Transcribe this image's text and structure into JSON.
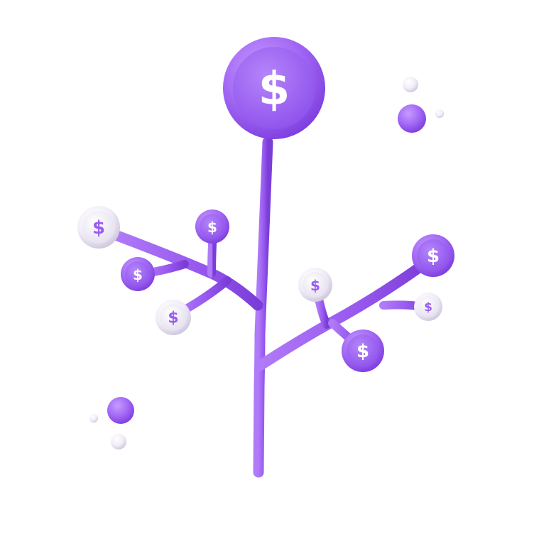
{
  "illustration": {
    "subject": "money-tree",
    "coin_symbol": "$",
    "colors": {
      "stem": "#9B5CF0",
      "stem_shadow": "#7A3FD6",
      "coin_purple": "#A46AF5",
      "coin_purple_dark": "#8446E6",
      "coin_white": "#F4F1FA",
      "coin_white_shade": "#D9D4E6",
      "symbol_on_purple": "#FFFFFF",
      "symbol_on_white": "#9B5CF0",
      "bubble_purple": "#9A57EE",
      "bubble_white": "#EEEAF4"
    },
    "icons": [
      "dollar-coin-icon",
      "bubble-dot"
    ]
  }
}
